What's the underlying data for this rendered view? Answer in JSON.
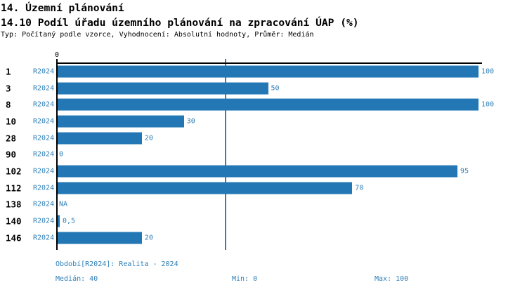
{
  "header": {
    "title": "14. Územní plánování",
    "subtitle": "14.10 Podíl úřadu územního plánování na zpracování ÚAP (%)",
    "meta": "Typ: Počítaný podle vzorce, Vyhodnocení: Absolutní hodnoty, Průměr: Medián"
  },
  "axis": {
    "zero_label": "0"
  },
  "chart_data": {
    "type": "bar",
    "orientation": "horizontal",
    "title": "14.10 Podíl úřadu územního plánování na zpracování ÚAP (%)",
    "categories": [
      "1",
      "3",
      "8",
      "10",
      "28",
      "90",
      "102",
      "112",
      "138",
      "140",
      "146"
    ],
    "series_label": "R2024",
    "values": [
      100,
      50,
      100,
      30,
      20,
      0,
      95,
      70,
      null,
      0.5,
      20
    ],
    "value_labels": [
      "100",
      "50",
      "100",
      "30",
      "20",
      "0",
      "95",
      "70",
      "NA",
      "0,5",
      "20"
    ],
    "xlim": [
      0,
      100
    ],
    "median_line_value": 40,
    "grid": "single median gridline",
    "legend_position": "none",
    "stats": {
      "median": 40,
      "min": 0,
      "max": 100
    }
  },
  "footer": {
    "period": "Období[R2024]: Realita - 2024",
    "median": "Medián: 40",
    "min": "Min: 0",
    "max": "Max: 100"
  },
  "colors": {
    "bar": "#2277B4",
    "text_blue": "#2E7FB8",
    "median_line": "#3080B8",
    "axis": "#000000",
    "background": "#FFFFFF"
  }
}
